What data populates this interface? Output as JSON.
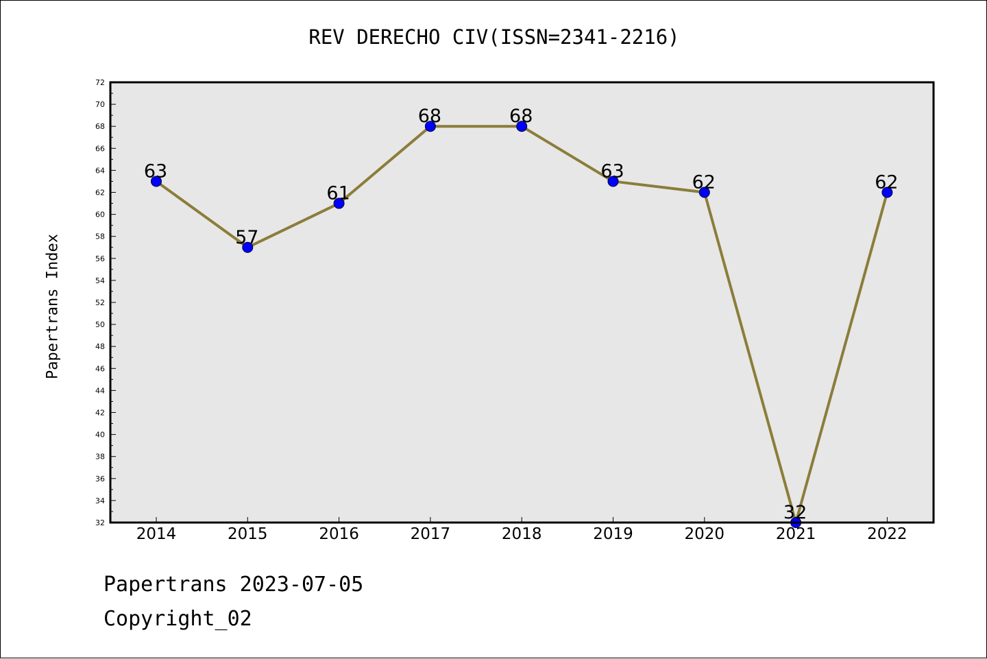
{
  "chart_data": {
    "type": "line",
    "title": "REV DERECHO CIV(ISSN=2341-2216)",
    "xlabel": "",
    "ylabel": "Papertrans Index",
    "x": [
      "2014",
      "2015",
      "2016",
      "2017",
      "2018",
      "2019",
      "2020",
      "2021",
      "2022"
    ],
    "series": [
      {
        "values": [
          63,
          57,
          61,
          68,
          68,
          63,
          62,
          32,
          62
        ]
      }
    ],
    "ylim": [
      32,
      72
    ],
    "yticks": [
      32,
      34,
      36,
      38,
      40,
      42,
      44,
      46,
      48,
      50,
      52,
      54,
      56,
      58,
      60,
      62,
      64,
      66,
      68,
      70,
      72
    ],
    "grid": false,
    "colors": {
      "line": "#8b7d3a",
      "marker": "#0000ff",
      "plot_bg": "#e7e7e7"
    }
  },
  "footer": {
    "line1": "Papertrans 2023-07-05",
    "line2": "Copyright_02"
  }
}
